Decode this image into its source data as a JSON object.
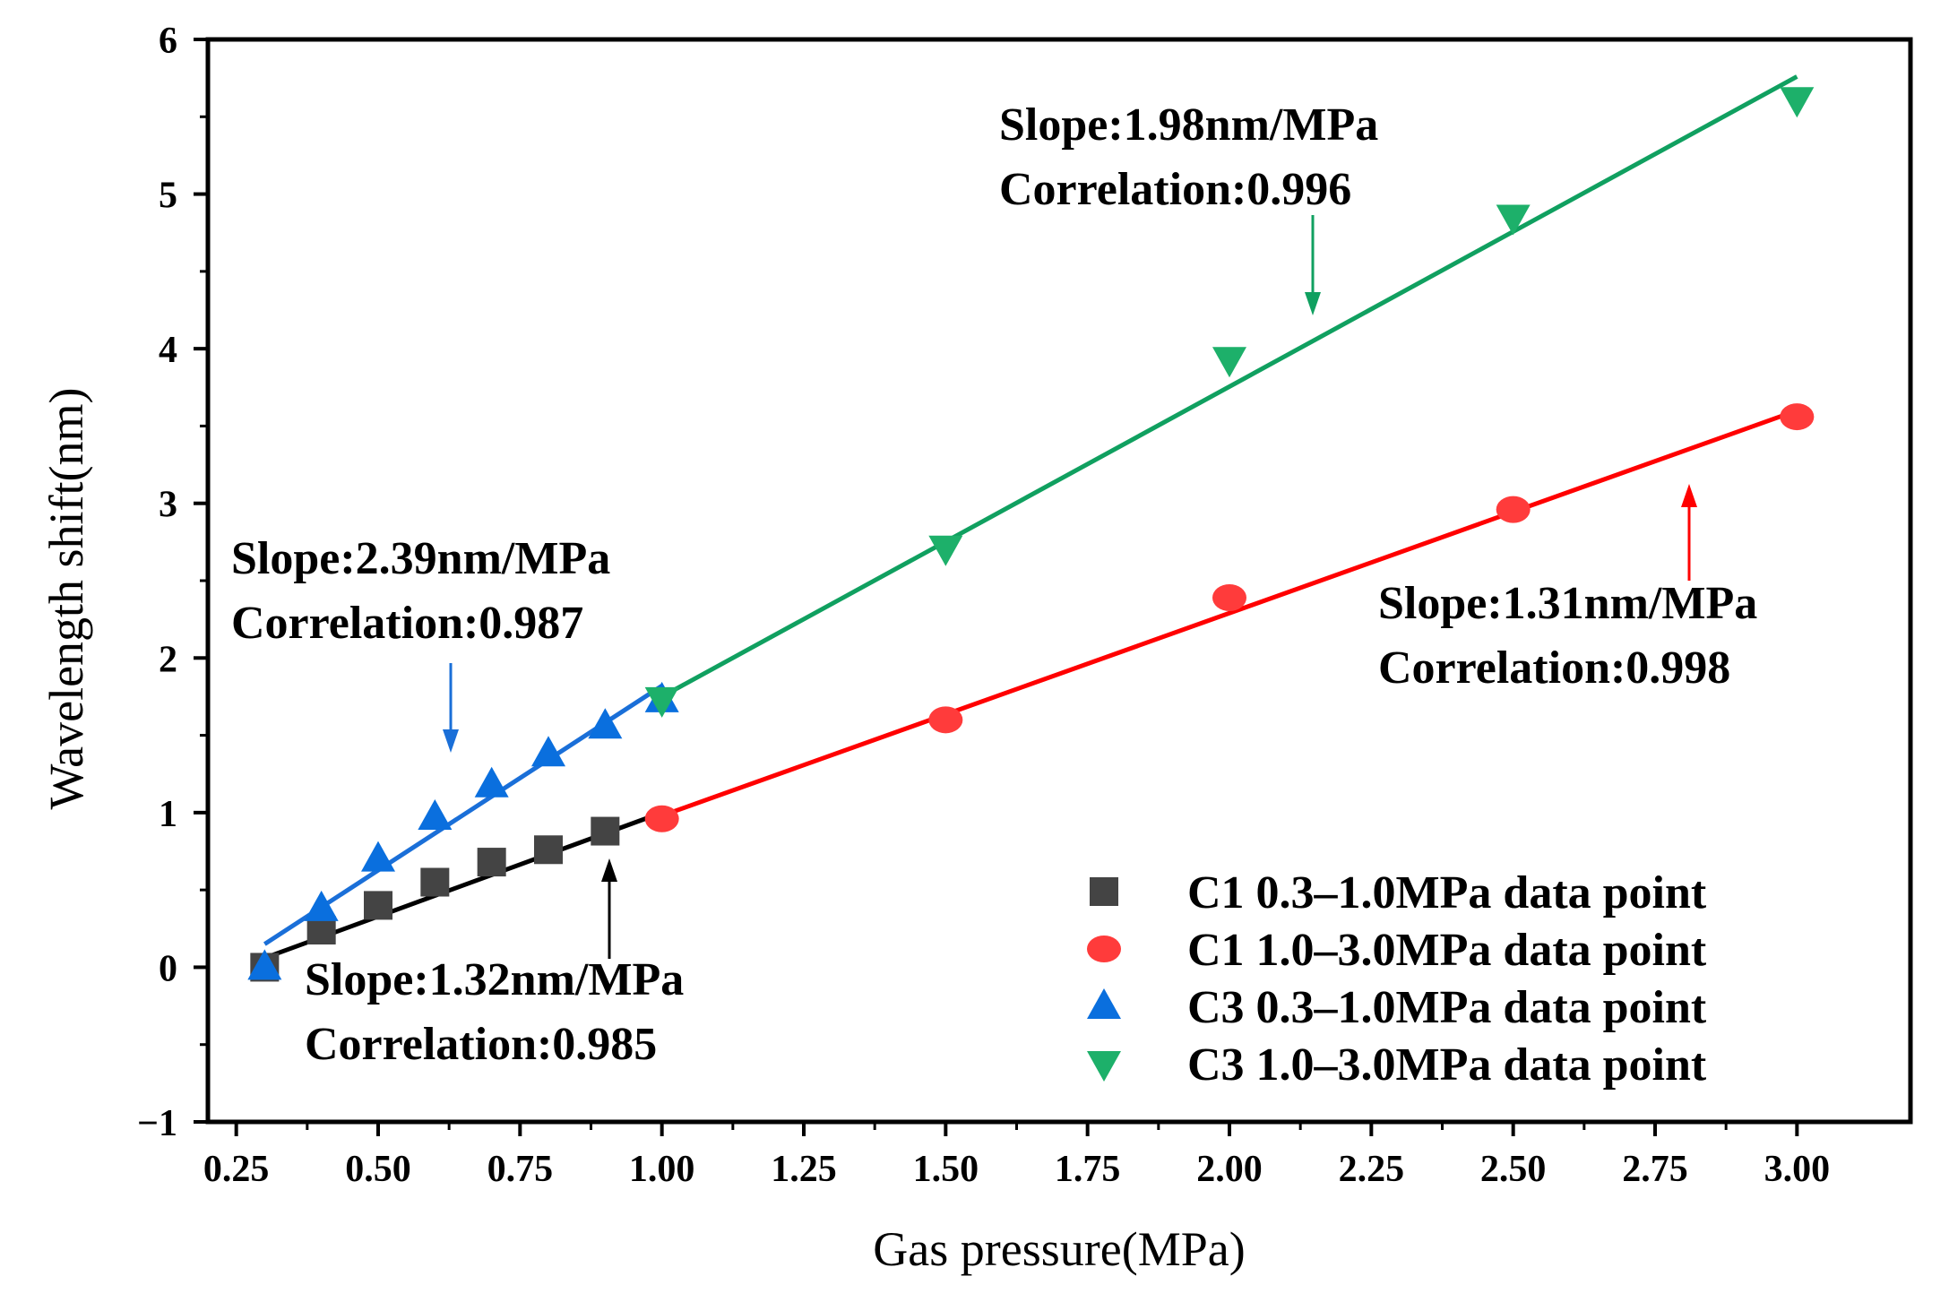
{
  "chart_data": {
    "type": "scatter",
    "title": "",
    "xlabel": "Gas pressure(MPa)",
    "ylabel": "Wavelength shift(nm)",
    "xlim": [
      0.2,
      3.2
    ],
    "ylim": [
      -1,
      6
    ],
    "xticks": [
      "0.25",
      "0.50",
      "0.75",
      "1.00",
      "1.25",
      "1.50",
      "1.75",
      "2.00",
      "2.25",
      "2.50",
      "2.75",
      "3.00"
    ],
    "xtick_values": [
      0.25,
      0.5,
      0.75,
      1.0,
      1.25,
      1.5,
      1.75,
      2.0,
      2.25,
      2.5,
      2.75,
      3.0
    ],
    "yticks": [
      "−1",
      "0",
      "1",
      "2",
      "3",
      "4",
      "5",
      "6"
    ],
    "ytick_values": [
      -1,
      0,
      1,
      2,
      3,
      4,
      5,
      6
    ],
    "grid": false,
    "legend_position": "bottom-right",
    "series": [
      {
        "name": "C1 0.3–1.0MPa data point",
        "marker": "square",
        "color": "#444444",
        "line_color": "#000000",
        "x": [
          0.3,
          0.4,
          0.5,
          0.6,
          0.7,
          0.8,
          0.9
        ],
        "y": [
          0.0,
          0.24,
          0.4,
          0.55,
          0.68,
          0.76,
          0.88
        ],
        "fit": {
          "x": [
            0.3,
            1.0
          ],
          "y": [
            0.06,
            1.0
          ]
        }
      },
      {
        "name": "C1 1.0–3.0MPa data point",
        "marker": "circle",
        "color": "#ff3b3b",
        "line_color": "#ff0000",
        "x": [
          1.0,
          1.5,
          2.0,
          2.5,
          3.0
        ],
        "y": [
          0.96,
          1.6,
          2.39,
          2.96,
          3.56
        ],
        "fit": {
          "x": [
            1.0,
            3.0
          ],
          "y": [
            0.98,
            3.6
          ]
        }
      },
      {
        "name": "C3 0.3–1.0MPa data point",
        "marker": "triangle-up",
        "color": "#0a6fde",
        "line_color": "#1a6fd8",
        "x": [
          0.3,
          0.4,
          0.5,
          0.6,
          0.7,
          0.8,
          0.9,
          1.0
        ],
        "y": [
          0.0,
          0.38,
          0.7,
          0.97,
          1.18,
          1.38,
          1.56,
          1.73
        ],
        "fit": {
          "x": [
            0.3,
            1.0
          ],
          "y": [
            0.15,
            1.82
          ]
        }
      },
      {
        "name": "C3 1.0–3.0MPa data point",
        "marker": "triangle-down",
        "color": "#1db06a",
        "line_color": "#10a060",
        "x": [
          1.0,
          1.5,
          2.0,
          2.5,
          3.0
        ],
        "y": [
          1.73,
          2.71,
          3.93,
          4.85,
          5.61
        ],
        "fit": {
          "x": [
            1.0,
            3.0
          ],
          "y": [
            1.75,
            5.76
          ]
        }
      }
    ],
    "annotations": [
      {
        "lines": [
          "Slope:1.32nm/MPa",
          "Correlation:0.985"
        ],
        "arrow_color": "#000000"
      },
      {
        "lines": [
          "Slope:2.39nm/MPa",
          "Correlation:0.987"
        ],
        "arrow_color": "#1a6fd8"
      },
      {
        "lines": [
          "Slope:1.98nm/MPa",
          "Correlation:0.996"
        ],
        "arrow_color": "#10a060"
      },
      {
        "lines": [
          "Slope:1.31nm/MPa",
          "Correlation:0.998"
        ],
        "arrow_color": "#ff0000"
      }
    ]
  }
}
